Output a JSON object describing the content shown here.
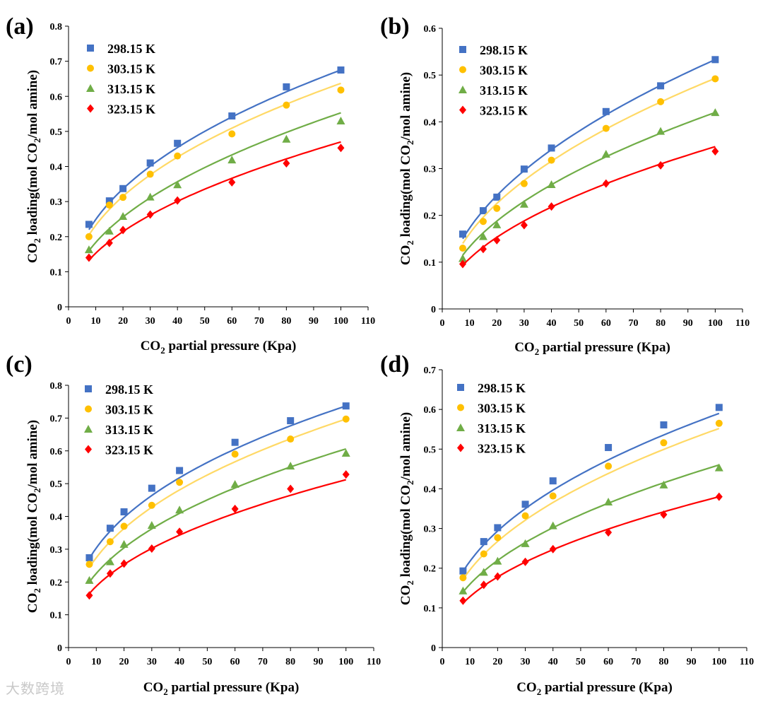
{
  "figure": {
    "watermark": "大数跨境",
    "colors": {
      "298.15 K": "#4472c4",
      "303.15 K": "#ffc000",
      "313.15 K": "#70ad47",
      "323.15 K": "#ff0000"
    },
    "curve_colors": {
      "298.15 K": "#4472c4",
      "303.15 K": "#ffd966",
      "313.15 K": "#70ad47",
      "323.15 K": "#ff0000"
    }
  },
  "chart_data": [
    {
      "panel": "(a)",
      "type": "scatter",
      "xlabel": "CO2 partial pressure (Kpa)",
      "ylabel": "CO2 loading(mol CO2/mol amine)",
      "xlim": [
        0,
        110
      ],
      "ylim": [
        0,
        0.8
      ],
      "x_ticks": [
        0,
        10,
        20,
        30,
        40,
        50,
        60,
        70,
        80,
        90,
        100,
        110
      ],
      "y_ticks": [
        0,
        0.1,
        0.2,
        0.3,
        0.4,
        0.5,
        0.6,
        0.7,
        0.8
      ],
      "x": [
        7.5,
        15,
        20,
        30,
        40,
        60,
        80,
        100
      ],
      "series": [
        {
          "name": "298.15 K",
          "marker": "square",
          "values": [
            0.235,
            0.302,
            0.337,
            0.41,
            0.466,
            0.544,
            0.627,
            0.675
          ],
          "fit_start": 0.22,
          "fit_end": 0.675
        },
        {
          "name": "303.15 K",
          "marker": "circle",
          "values": [
            0.2,
            0.29,
            0.312,
            0.378,
            0.43,
            0.493,
            0.575,
            0.618
          ],
          "fit_start": 0.205,
          "fit_end": 0.637
        },
        {
          "name": "313.15 K",
          "marker": "triangle",
          "values": [
            0.163,
            0.216,
            0.258,
            0.313,
            0.348,
            0.419,
            0.478,
            0.53
          ],
          "fit_start": 0.16,
          "fit_end": 0.553
        },
        {
          "name": "323.15 K",
          "marker": "diamond",
          "values": [
            0.14,
            0.182,
            0.219,
            0.263,
            0.303,
            0.355,
            0.409,
            0.453
          ],
          "fit_start": 0.133,
          "fit_end": 0.47
        }
      ]
    },
    {
      "panel": "(b)",
      "type": "scatter",
      "xlabel": "CO2 partial pressure (Kpa)",
      "ylabel": "CO2 loading(mol CO2/mol amine)",
      "xlim": [
        0,
        110
      ],
      "ylim": [
        0,
        0.6
      ],
      "x_ticks": [
        0,
        10,
        20,
        30,
        40,
        50,
        60,
        70,
        80,
        90,
        100,
        110
      ],
      "y_ticks": [
        0,
        0.1,
        0.2,
        0.3,
        0.4,
        0.5,
        0.6
      ],
      "x": [
        7.5,
        15,
        20,
        30,
        40,
        60,
        80,
        100
      ],
      "series": [
        {
          "name": "298.15 K",
          "marker": "square",
          "values": [
            0.16,
            0.21,
            0.239,
            0.299,
            0.344,
            0.422,
            0.477,
            0.533
          ],
          "fit_start": 0.15,
          "fit_end": 0.533
        },
        {
          "name": "303.15 K",
          "marker": "circle",
          "values": [
            0.13,
            0.187,
            0.215,
            0.268,
            0.318,
            0.386,
            0.443,
            0.492
          ],
          "fit_start": 0.14,
          "fit_end": 0.493
        },
        {
          "name": "313.15 K",
          "marker": "triangle",
          "values": [
            0.108,
            0.155,
            0.18,
            0.224,
            0.266,
            0.331,
            0.38,
            0.42
          ],
          "fit_start": 0.115,
          "fit_end": 0.42
        },
        {
          "name": "323.15 K",
          "marker": "diamond",
          "values": [
            0.096,
            0.128,
            0.147,
            0.179,
            0.219,
            0.268,
            0.307,
            0.337
          ],
          "fit_start": 0.093,
          "fit_end": 0.347
        }
      ]
    },
    {
      "panel": "(c)",
      "type": "scatter",
      "xlabel": "CO2 partial pressure (Kpa)",
      "ylabel": "CO2 loading(mol CO2/mol amine)",
      "xlim": [
        0,
        110
      ],
      "ylim": [
        0,
        0.8
      ],
      "x_ticks": [
        0,
        10,
        20,
        30,
        40,
        50,
        60,
        70,
        80,
        90,
        100,
        110
      ],
      "y_ticks": [
        0,
        0.1,
        0.2,
        0.3,
        0.4,
        0.5,
        0.6,
        0.7,
        0.8
      ],
      "x": [
        7.5,
        15,
        20,
        30,
        40,
        60,
        80,
        100
      ],
      "series": [
        {
          "name": "298.15 K",
          "marker": "square",
          "values": [
            0.274,
            0.364,
            0.414,
            0.486,
            0.54,
            0.626,
            0.692,
            0.737
          ],
          "fit_start": 0.272,
          "fit_end": 0.737
        },
        {
          "name": "303.15 K",
          "marker": "circle",
          "values": [
            0.254,
            0.323,
            0.37,
            0.434,
            0.504,
            0.59,
            0.636,
            0.697
          ],
          "fit_start": 0.244,
          "fit_end": 0.697
        },
        {
          "name": "313.15 K",
          "marker": "triangle",
          "values": [
            0.205,
            0.262,
            0.315,
            0.373,
            0.42,
            0.498,
            0.554,
            0.593
          ],
          "fit_start": 0.2,
          "fit_end": 0.606
        },
        {
          "name": "323.15 K",
          "marker": "diamond",
          "values": [
            0.159,
            0.226,
            0.256,
            0.302,
            0.353,
            0.423,
            0.484,
            0.528
          ],
          "fit_start": 0.165,
          "fit_end": 0.512
        }
      ]
    },
    {
      "panel": "(d)",
      "type": "scatter",
      "xlabel": "CO2 partial pressure (Kpa)",
      "ylabel": "CO2 loading(mol CO2/mol amine)",
      "xlim": [
        0,
        110
      ],
      "ylim": [
        0,
        0.7
      ],
      "x_ticks": [
        0,
        10,
        20,
        30,
        40,
        50,
        60,
        70,
        80,
        90,
        100,
        110
      ],
      "y_ticks": [
        0,
        0.1,
        0.2,
        0.3,
        0.4,
        0.5,
        0.6,
        0.7
      ],
      "x": [
        7.5,
        15,
        20,
        30,
        40,
        60,
        80,
        100
      ],
      "series": [
        {
          "name": "298.15 K",
          "marker": "square",
          "values": [
            0.193,
            0.267,
            0.302,
            0.361,
            0.42,
            0.504,
            0.561,
            0.605
          ],
          "fit_start": 0.192,
          "fit_end": 0.59
        },
        {
          "name": "303.15 K",
          "marker": "circle",
          "values": [
            0.176,
            0.236,
            0.277,
            0.332,
            0.382,
            0.457,
            0.516,
            0.565
          ],
          "fit_start": 0.172,
          "fit_end": 0.552
        },
        {
          "name": "313.15 K",
          "marker": "triangle",
          "values": [
            0.143,
            0.19,
            0.218,
            0.262,
            0.307,
            0.367,
            0.41,
            0.453
          ],
          "fit_start": 0.14,
          "fit_end": 0.46
        },
        {
          "name": "323.15 K",
          "marker": "diamond",
          "values": [
            0.118,
            0.158,
            0.179,
            0.216,
            0.248,
            0.29,
            0.335,
            0.38
          ],
          "fit_start": 0.112,
          "fit_end": 0.38
        }
      ]
    }
  ]
}
